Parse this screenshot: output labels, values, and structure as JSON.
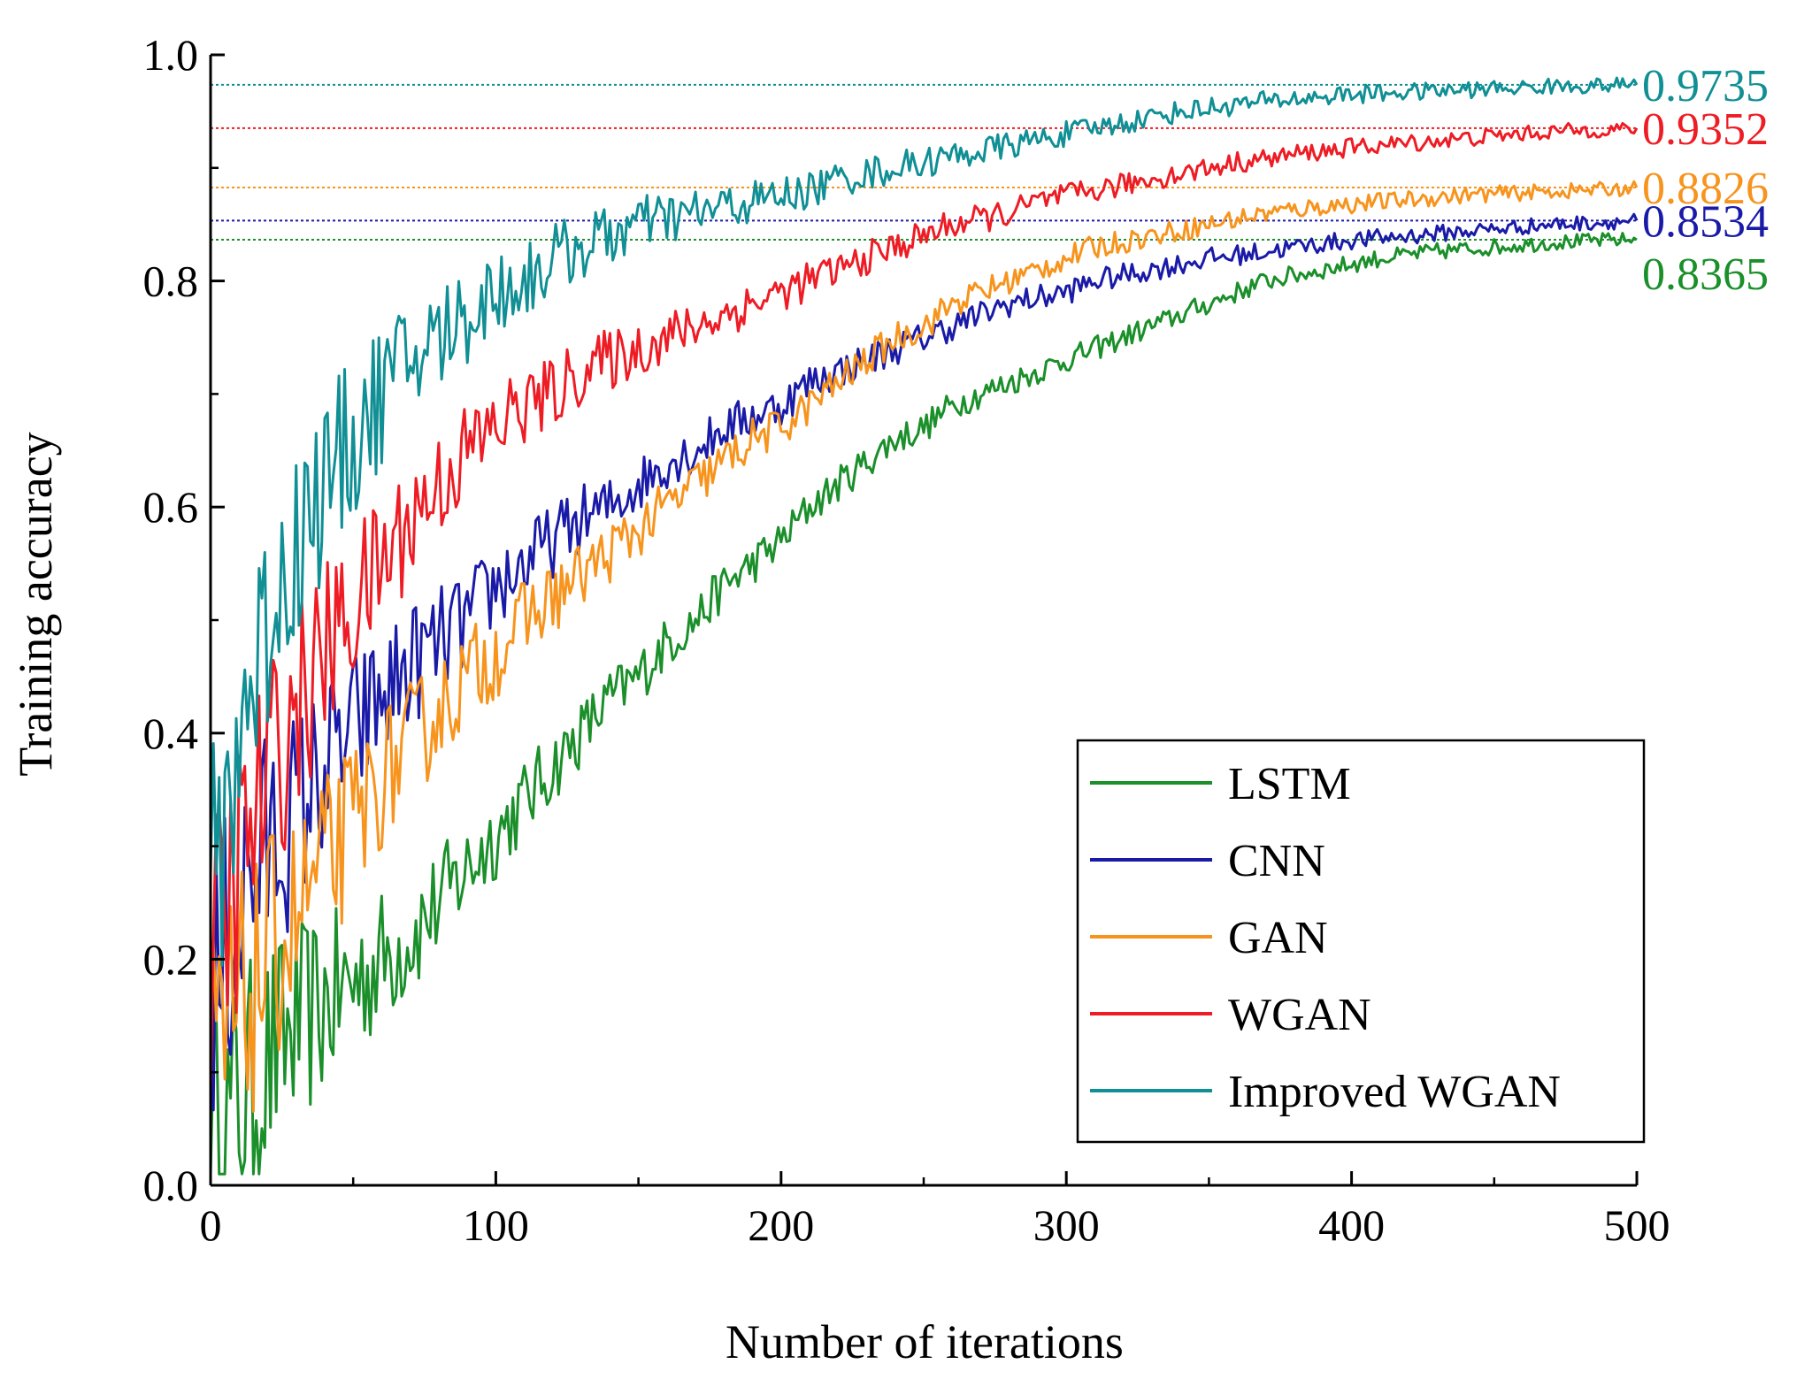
{
  "chart_data": {
    "type": "line",
    "title": "",
    "xlabel": "Number of iterations",
    "ylabel": "Training accuracy",
    "xlim": [
      0,
      500
    ],
    "ylim": [
      0.0,
      1.0
    ],
    "xticks": [
      0,
      100,
      200,
      300,
      400,
      500
    ],
    "xtick_labels": [
      "0",
      "100",
      "200",
      "300",
      "400",
      "500"
    ],
    "yticks": [
      0.0,
      0.2,
      0.4,
      0.6,
      0.8,
      1.0
    ],
    "ytick_labels": [
      "0.0",
      "0.2",
      "0.4",
      "0.6",
      "0.8",
      "1.0"
    ],
    "grid": false,
    "legend_position": "bottom-right",
    "series": [
      {
        "name": "LSTM",
        "color": "#1a8f2a",
        "final": 0.8365,
        "final_label": "0.8365",
        "x": [
          0,
          10,
          20,
          30,
          40,
          50,
          60,
          70,
          80,
          90,
          100,
          110,
          120,
          130,
          140,
          150,
          160,
          170,
          180,
          190,
          200,
          210,
          220,
          230,
          240,
          250,
          260,
          270,
          280,
          290,
          300,
          310,
          320,
          330,
          340,
          350,
          360,
          370,
          380,
          390,
          400,
          410,
          420,
          430,
          440,
          450,
          460,
          470,
          480,
          490,
          500
        ],
        "y": [
          0.02,
          0.07,
          0.11,
          0.14,
          0.16,
          0.18,
          0.2,
          0.22,
          0.25,
          0.28,
          0.31,
          0.34,
          0.37,
          0.4,
          0.43,
          0.45,
          0.48,
          0.5,
          0.53,
          0.55,
          0.57,
          0.6,
          0.62,
          0.64,
          0.66,
          0.67,
          0.69,
          0.7,
          0.71,
          0.72,
          0.73,
          0.74,
          0.75,
          0.76,
          0.77,
          0.78,
          0.79,
          0.8,
          0.805,
          0.81,
          0.815,
          0.82,
          0.823,
          0.826,
          0.828,
          0.83,
          0.832,
          0.834,
          0.835,
          0.836,
          0.8365
        ]
      },
      {
        "name": "CNN",
        "color": "#1a1aa8",
        "final": 0.8534,
        "final_label": "0.8534",
        "x": [
          0,
          10,
          20,
          30,
          40,
          50,
          60,
          70,
          80,
          90,
          100,
          110,
          120,
          130,
          140,
          150,
          160,
          170,
          180,
          190,
          200,
          210,
          220,
          230,
          240,
          250,
          260,
          270,
          280,
          290,
          300,
          310,
          320,
          330,
          340,
          350,
          360,
          370,
          380,
          390,
          400,
          410,
          420,
          430,
          440,
          450,
          460,
          470,
          480,
          490,
          500
        ],
        "y": [
          0.15,
          0.25,
          0.3,
          0.33,
          0.37,
          0.4,
          0.43,
          0.46,
          0.48,
          0.5,
          0.53,
          0.55,
          0.57,
          0.59,
          0.6,
          0.62,
          0.64,
          0.65,
          0.67,
          0.68,
          0.69,
          0.71,
          0.72,
          0.73,
          0.74,
          0.75,
          0.76,
          0.77,
          0.78,
          0.785,
          0.79,
          0.8,
          0.805,
          0.81,
          0.815,
          0.82,
          0.823,
          0.826,
          0.83,
          0.833,
          0.836,
          0.838,
          0.84,
          0.842,
          0.844,
          0.846,
          0.848,
          0.85,
          0.851,
          0.852,
          0.8534
        ]
      },
      {
        "name": "GAN",
        "color": "#f7941d",
        "final": 0.8826,
        "final_label": "0.8826",
        "x": [
          0,
          10,
          20,
          30,
          40,
          50,
          60,
          70,
          80,
          90,
          100,
          110,
          120,
          130,
          140,
          150,
          160,
          170,
          180,
          190,
          200,
          210,
          220,
          230,
          240,
          250,
          260,
          270,
          280,
          290,
          300,
          310,
          320,
          330,
          340,
          350,
          360,
          370,
          380,
          390,
          400,
          410,
          420,
          430,
          440,
          450,
          460,
          470,
          480,
          490,
          500
        ],
        "y": [
          0.1,
          0.15,
          0.2,
          0.24,
          0.28,
          0.32,
          0.36,
          0.39,
          0.42,
          0.45,
          0.47,
          0.5,
          0.52,
          0.54,
          0.56,
          0.58,
          0.6,
          0.62,
          0.64,
          0.66,
          0.67,
          0.69,
          0.71,
          0.73,
          0.75,
          0.76,
          0.78,
          0.79,
          0.8,
          0.81,
          0.82,
          0.83,
          0.835,
          0.84,
          0.845,
          0.85,
          0.855,
          0.86,
          0.863,
          0.866,
          0.868,
          0.87,
          0.872,
          0.874,
          0.876,
          0.877,
          0.878,
          0.879,
          0.88,
          0.881,
          0.8826
        ]
      },
      {
        "name": "WGAN",
        "color": "#ee1c24",
        "final": 0.9352,
        "final_label": "0.9352",
        "x": [
          0,
          10,
          20,
          30,
          40,
          50,
          60,
          70,
          80,
          90,
          100,
          110,
          120,
          130,
          140,
          150,
          160,
          170,
          180,
          190,
          200,
          210,
          220,
          230,
          240,
          250,
          260,
          270,
          280,
          290,
          300,
          310,
          320,
          330,
          340,
          350,
          360,
          370,
          380,
          390,
          400,
          410,
          420,
          430,
          440,
          450,
          460,
          470,
          480,
          490,
          500
        ],
        "y": [
          0.18,
          0.28,
          0.36,
          0.42,
          0.47,
          0.51,
          0.55,
          0.59,
          0.62,
          0.65,
          0.67,
          0.69,
          0.7,
          0.72,
          0.73,
          0.74,
          0.75,
          0.76,
          0.77,
          0.78,
          0.79,
          0.8,
          0.81,
          0.82,
          0.83,
          0.84,
          0.85,
          0.855,
          0.86,
          0.87,
          0.875,
          0.88,
          0.885,
          0.89,
          0.895,
          0.9,
          0.905,
          0.908,
          0.912,
          0.915,
          0.918,
          0.92,
          0.922,
          0.924,
          0.926,
          0.928,
          0.93,
          0.932,
          0.933,
          0.934,
          0.9352
        ]
      },
      {
        "name": "Improved WGAN",
        "color": "#108f95",
        "final": 0.9735,
        "final_label": "0.9735",
        "x": [
          0,
          10,
          20,
          30,
          40,
          50,
          60,
          70,
          80,
          90,
          100,
          110,
          120,
          130,
          140,
          150,
          160,
          170,
          180,
          190,
          200,
          210,
          220,
          230,
          240,
          250,
          260,
          270,
          280,
          290,
          300,
          310,
          320,
          330,
          340,
          350,
          360,
          370,
          380,
          390,
          400,
          410,
          420,
          430,
          440,
          450,
          460,
          470,
          480,
          490,
          500
        ],
        "y": [
          0.25,
          0.4,
          0.5,
          0.57,
          0.62,
          0.66,
          0.7,
          0.73,
          0.75,
          0.77,
          0.79,
          0.8,
          0.82,
          0.83,
          0.84,
          0.85,
          0.855,
          0.86,
          0.865,
          0.87,
          0.875,
          0.88,
          0.89,
          0.895,
          0.9,
          0.905,
          0.91,
          0.915,
          0.92,
          0.925,
          0.93,
          0.935,
          0.94,
          0.945,
          0.95,
          0.953,
          0.956,
          0.959,
          0.961,
          0.963,
          0.965,
          0.966,
          0.967,
          0.968,
          0.969,
          0.97,
          0.971,
          0.972,
          0.9725,
          0.973,
          0.9735
        ]
      }
    ]
  }
}
